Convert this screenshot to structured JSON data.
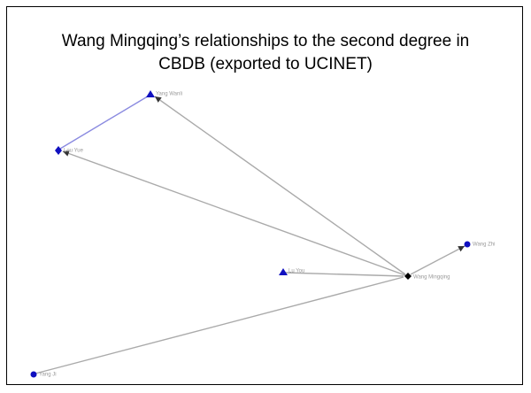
{
  "title": "Wang Mingqing’s relationships to the second degree in CBDB (exported to UCINET)",
  "nodes": [
    {
      "label": "Yang Wanli"
    },
    {
      "label": "Lou Yue"
    },
    {
      "label": "Lu You"
    },
    {
      "label": "Wang Mingqing"
    },
    {
      "label": "Wang Zhi"
    },
    {
      "label": "Yang Ji"
    }
  ]
}
